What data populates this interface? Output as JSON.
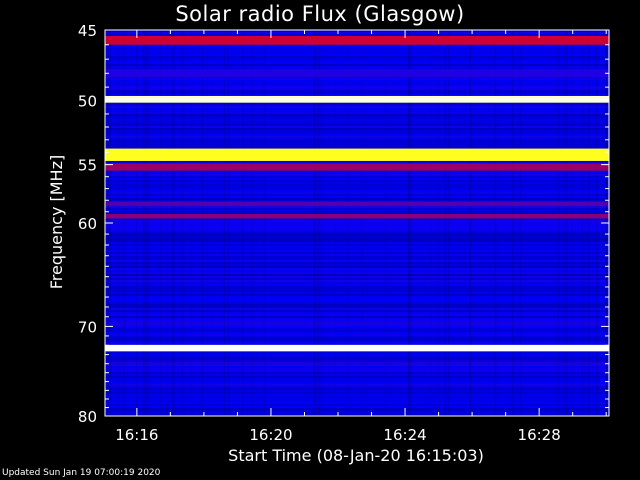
{
  "title": "Solar radio Flux (Glasgow)",
  "footer": "Updated Sun Jan 19 07:00:19 2020",
  "chart_data": {
    "type": "heatmap",
    "title": "Solar radio Flux (Glasgow)",
    "xlabel": "Start Time (08-Jan-20 16:15:03)",
    "ylabel": "Frequency [MHz]",
    "xlim": [
      "16:15:03",
      "16:30:05"
    ],
    "ylim": [
      45,
      80
    ],
    "x_ticks": [
      "16:16",
      "16:20",
      "16:24",
      "16:28"
    ],
    "y_ticks": [
      45,
      50,
      55,
      60,
      70,
      80
    ],
    "y_scale": "log",
    "colormap": [
      "#00007a",
      "#0000ff",
      "#ff0000",
      "#ffff00",
      "#ffffff"
    ],
    "background_intensity": 0.2,
    "bands": [
      {
        "freq": 45.7,
        "intensity": 0.45,
        "width_mhz": 0.3
      },
      {
        "freq": 48.0,
        "intensity": 0.28,
        "width_mhz": 0.3
      },
      {
        "freq": 49.9,
        "intensity": 0.95,
        "width_mhz": 0.25
      },
      {
        "freq": 54.2,
        "intensity": 0.78,
        "width_mhz": 0.5
      },
      {
        "freq": 55.2,
        "intensity": 0.4,
        "width_mhz": 0.3
      },
      {
        "freq": 58.3,
        "intensity": 0.33,
        "width_mhz": 0.2
      },
      {
        "freq": 59.4,
        "intensity": 0.38,
        "width_mhz": 0.2
      },
      {
        "freq": 72.3,
        "intensity": 1.0,
        "width_mhz": 0.35
      }
    ]
  }
}
